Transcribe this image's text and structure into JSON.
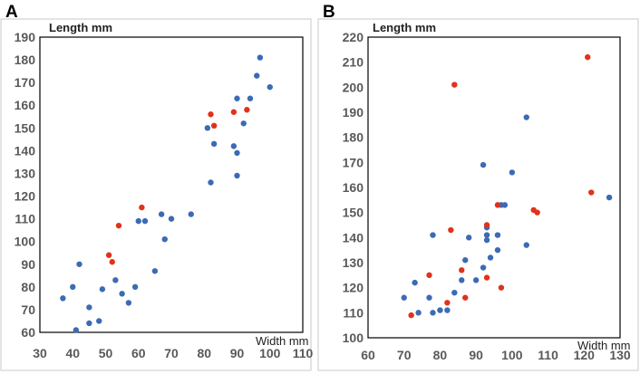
{
  "chart_data": [
    {
      "type": "scatter",
      "panel_label": "A",
      "xlabel": "Width mm",
      "ylabel": "Length mm",
      "xlim": [
        30,
        110
      ],
      "ylim": [
        60,
        190
      ],
      "xticks": [
        30,
        40,
        50,
        60,
        70,
        80,
        90,
        100,
        110
      ],
      "yticks": [
        60,
        70,
        80,
        90,
        100,
        110,
        120,
        130,
        140,
        150,
        160,
        170,
        180,
        190
      ],
      "grid": false,
      "series": [
        {
          "name": "blue",
          "color": "#3C6AB5",
          "points": [
            [
              37,
              75
            ],
            [
              40,
              80
            ],
            [
              42,
              90
            ],
            [
              41,
              61
            ],
            [
              45,
              64
            ],
            [
              45,
              71
            ],
            [
              48,
              65
            ],
            [
              49,
              79
            ],
            [
              53,
              83
            ],
            [
              55,
              77
            ],
            [
              57,
              73
            ],
            [
              59,
              80
            ],
            [
              65,
              87
            ],
            [
              68,
              101
            ],
            [
              60,
              109
            ],
            [
              62,
              109
            ],
            [
              67,
              112
            ],
            [
              70,
              110
            ],
            [
              76,
              112
            ],
            [
              81,
              150
            ],
            [
              82,
              126
            ],
            [
              83,
              143
            ],
            [
              89,
              142
            ],
            [
              90,
              139
            ],
            [
              90,
              129
            ],
            [
              90,
              163
            ],
            [
              92,
              152
            ],
            [
              94,
              163
            ],
            [
              96,
              173
            ],
            [
              97,
              181
            ],
            [
              100,
              168
            ]
          ]
        },
        {
          "name": "red",
          "color": "#E0321C",
          "points": [
            [
              51,
              94
            ],
            [
              52,
              91
            ],
            [
              54,
              107
            ],
            [
              61,
              115
            ],
            [
              82,
              156
            ],
            [
              83,
              151
            ],
            [
              89,
              157
            ],
            [
              93,
              158
            ]
          ]
        }
      ]
    },
    {
      "type": "scatter",
      "panel_label": "B",
      "xlabel": "Width mm",
      "ylabel": "Length mm",
      "xlim": [
        60,
        130
      ],
      "ylim": [
        100,
        220
      ],
      "xticks": [
        60,
        70,
        80,
        90,
        100,
        110,
        120,
        130
      ],
      "yticks": [
        100,
        110,
        120,
        130,
        140,
        150,
        160,
        170,
        180,
        190,
        200,
        210,
        220
      ],
      "grid": false,
      "series": [
        {
          "name": "blue",
          "color": "#3C6AB5",
          "points": [
            [
              70,
              116
            ],
            [
              73,
              122
            ],
            [
              74,
              110
            ],
            [
              77,
              116
            ],
            [
              78,
              141
            ],
            [
              78,
              110
            ],
            [
              80,
              111
            ],
            [
              82,
              111
            ],
            [
              84,
              118
            ],
            [
              86,
              123
            ],
            [
              87,
              131
            ],
            [
              88,
              140
            ],
            [
              90,
              123
            ],
            [
              92,
              128
            ],
            [
              92,
              169
            ],
            [
              93,
              141
            ],
            [
              93,
              139
            ],
            [
              93,
              144
            ],
            [
              94,
              132
            ],
            [
              96,
              141
            ],
            [
              96,
              135
            ],
            [
              97,
              153
            ],
            [
              98,
              153
            ],
            [
              100,
              166
            ],
            [
              104,
              188
            ],
            [
              104,
              137
            ],
            [
              127,
              156
            ]
          ]
        },
        {
          "name": "red",
          "color": "#E0321C",
          "points": [
            [
              72,
              109
            ],
            [
              77,
              125
            ],
            [
              82,
              114
            ],
            [
              83,
              143
            ],
            [
              84,
              201
            ],
            [
              86,
              127
            ],
            [
              87,
              116
            ],
            [
              93,
              145
            ],
            [
              93,
              124
            ],
            [
              96,
              153
            ],
            [
              97,
              120
            ],
            [
              106,
              151
            ],
            [
              107,
              150
            ],
            [
              121,
              212
            ],
            [
              122,
              158
            ]
          ]
        }
      ]
    }
  ]
}
